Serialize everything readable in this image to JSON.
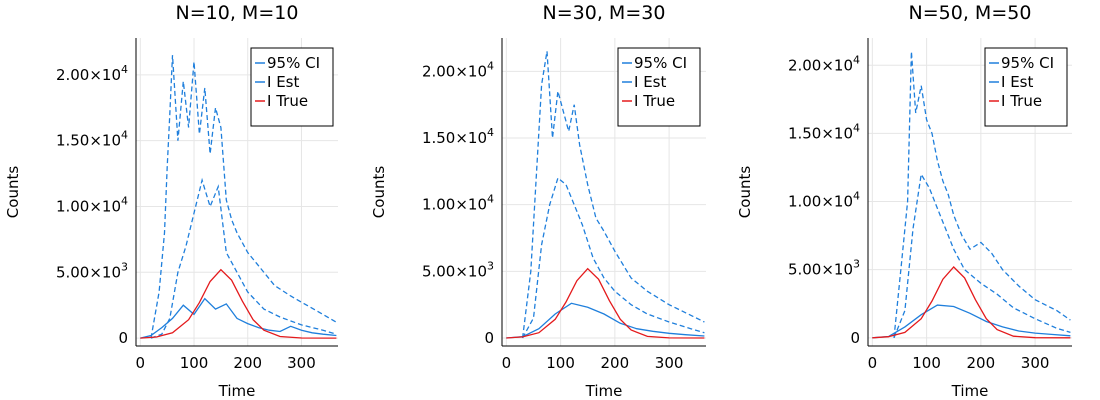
{
  "chart_data": [
    {
      "type": "line",
      "title": "N=10, M=10",
      "xlabel": "Time",
      "ylabel": "Counts",
      "xlim": [
        -8,
        368
      ],
      "ylim": [
        -600,
        22800
      ],
      "xticks": [
        0,
        100,
        200,
        300
      ],
      "xtick_labels": [
        "0",
        "100",
        "200",
        "300"
      ],
      "yticks": [
        0,
        5000,
        10000,
        15000,
        20000
      ],
      "ytick_labels": [
        "0",
        "5.00×10",
        "1.00×10",
        "1.50×10",
        "2.00×10"
      ],
      "ytick_exponents": [
        "",
        "3",
        "4",
        "4",
        "4"
      ],
      "legend_position": "top-right",
      "grid": true,
      "series": [
        {
          "name": "95% CI",
          "style": "dashed",
          "color": "#1f7fdc",
          "x": [
            20,
            35,
            45,
            50,
            55,
            60,
            70,
            80,
            90,
            100,
            110,
            120,
            130,
            140,
            150,
            160,
            170,
            180,
            200,
            220,
            250,
            280,
            310,
            340,
            365
          ],
          "y": [
            0,
            3500,
            8000,
            13000,
            17000,
            21500,
            15000,
            19500,
            16000,
            21000,
            15500,
            19000,
            14000,
            17500,
            16000,
            10500,
            9000,
            8000,
            6500,
            5500,
            4000,
            3200,
            2500,
            1800,
            1200
          ]
        },
        {
          "name": "95% CI lower",
          "style": "dashed",
          "color": "#1f7fdc",
          "x": [
            20,
            40,
            55,
            70,
            85,
            100,
            115,
            130,
            145,
            160,
            180,
            200,
            230,
            260,
            300,
            340,
            365
          ],
          "y": [
            0,
            300,
            1500,
            5000,
            7000,
            9500,
            12000,
            10000,
            11500,
            6500,
            5000,
            3500,
            2200,
            1600,
            1000,
            600,
            300
          ]
        },
        {
          "name": "I Est",
          "style": "solid",
          "color": "#1f7fdc",
          "x": [
            0,
            20,
            40,
            60,
            80,
            100,
            120,
            140,
            160,
            180,
            200,
            220,
            240,
            260,
            280,
            300,
            320,
            340,
            365
          ],
          "y": [
            0,
            200,
            800,
            1500,
            2500,
            1800,
            3000,
            2200,
            2600,
            1500,
            1100,
            800,
            600,
            500,
            900,
            600,
            400,
            300,
            200
          ]
        },
        {
          "name": "I True",
          "style": "solid",
          "color": "#e41a1c",
          "x": [
            0,
            30,
            60,
            90,
            110,
            130,
            150,
            170,
            190,
            210,
            230,
            260,
            300,
            365
          ],
          "y": [
            0,
            80,
            400,
            1400,
            2700,
            4300,
            5200,
            4400,
            2800,
            1400,
            600,
            120,
            10,
            0
          ]
        }
      ]
    },
    {
      "type": "line",
      "title": "N=30, M=30",
      "xlabel": "Time",
      "ylabel": "Counts",
      "xlim": [
        -8,
        368
      ],
      "ylim": [
        -600,
        22500
      ],
      "xticks": [
        0,
        100,
        200,
        300
      ],
      "xtick_labels": [
        "0",
        "100",
        "200",
        "300"
      ],
      "yticks": [
        0,
        5000,
        10000,
        15000,
        20000
      ],
      "ytick_labels": [
        "0",
        "5.00×10",
        "1.00×10",
        "1.50×10",
        "2.00×10"
      ],
      "ytick_exponents": [
        "",
        "3",
        "4",
        "4",
        "4"
      ],
      "legend_position": "top-right",
      "grid": true,
      "series": [
        {
          "name": "95% CI",
          "style": "dashed",
          "color": "#1f7fdc",
          "x": [
            30,
            45,
            55,
            65,
            75,
            85,
            95,
            105,
            115,
            125,
            135,
            150,
            165,
            180,
            200,
            230,
            260,
            300,
            340,
            365
          ],
          "y": [
            0,
            5000,
            12000,
            19000,
            21500,
            15000,
            18500,
            17000,
            15500,
            17500,
            14500,
            11500,
            9000,
            8000,
            6500,
            4500,
            3500,
            2500,
            1700,
            1200
          ]
        },
        {
          "name": "95% CI lower",
          "style": "dashed",
          "color": "#1f7fdc",
          "x": [
            30,
            50,
            65,
            80,
            95,
            110,
            125,
            140,
            160,
            180,
            200,
            230,
            260,
            300,
            340,
            365
          ],
          "y": [
            0,
            1500,
            7000,
            10000,
            12000,
            11500,
            10000,
            8500,
            6000,
            4500,
            3500,
            2500,
            1800,
            1200,
            700,
            400
          ]
        },
        {
          "name": "I Est",
          "style": "solid",
          "color": "#1f7fdc",
          "x": [
            0,
            30,
            60,
            90,
            120,
            150,
            180,
            210,
            240,
            270,
            300,
            330,
            365
          ],
          "y": [
            0,
            100,
            700,
            1800,
            2600,
            2300,
            1800,
            1100,
            700,
            500,
            350,
            250,
            150
          ]
        },
        {
          "name": "I True",
          "style": "solid",
          "color": "#e41a1c",
          "x": [
            0,
            30,
            60,
            90,
            110,
            130,
            150,
            170,
            190,
            210,
            230,
            260,
            300,
            365
          ],
          "y": [
            0,
            80,
            400,
            1400,
            2700,
            4300,
            5200,
            4400,
            2800,
            1400,
            600,
            120,
            10,
            0
          ]
        }
      ]
    },
    {
      "type": "line",
      "title": "N=50, M=50",
      "xlabel": "Time",
      "ylabel": "Counts",
      "xlim": [
        -8,
        368
      ],
      "ylim": [
        -600,
        22000
      ],
      "xticks": [
        0,
        100,
        200,
        300
      ],
      "xtick_labels": [
        "0",
        "100",
        "200",
        "300"
      ],
      "yticks": [
        0,
        5000,
        10000,
        15000,
        20000
      ],
      "ytick_labels": [
        "0",
        "5.00×10",
        "1.00×10",
        "1.50×10",
        "2.00×10"
      ],
      "ytick_exponents": [
        "",
        "3",
        "4",
        "4",
        "4"
      ],
      "legend_position": "top-right",
      "grid": true,
      "series": [
        {
          "name": "95% CI",
          "style": "dashed",
          "color": "#1f7fdc",
          "x": [
            40,
            55,
            65,
            72,
            80,
            90,
            100,
            110,
            120,
            130,
            140,
            150,
            165,
            180,
            200,
            220,
            240,
            270,
            300,
            340,
            365
          ],
          "y": [
            0,
            6000,
            10000,
            21000,
            16500,
            18500,
            16000,
            15000,
            13000,
            11500,
            10500,
            9000,
            7500,
            6500,
            7000,
            6200,
            5000,
            3800,
            2800,
            2000,
            1300
          ]
        },
        {
          "name": "95% CI lower",
          "style": "dashed",
          "color": "#1f7fdc",
          "x": [
            40,
            60,
            75,
            90,
            105,
            120,
            135,
            150,
            170,
            200,
            230,
            260,
            300,
            340,
            365
          ],
          "y": [
            0,
            2000,
            8000,
            12000,
            11000,
            9500,
            8000,
            6500,
            5000,
            4000,
            3200,
            2200,
            1400,
            700,
            400
          ]
        },
        {
          "name": "I Est",
          "style": "solid",
          "color": "#1f7fdc",
          "x": [
            0,
            30,
            60,
            90,
            120,
            150,
            180,
            210,
            240,
            270,
            300,
            330,
            365
          ],
          "y": [
            0,
            100,
            800,
            1700,
            2400,
            2300,
            1800,
            1200,
            800,
            500,
            350,
            250,
            150
          ]
        },
        {
          "name": "I True",
          "style": "solid",
          "color": "#e41a1c",
          "x": [
            0,
            30,
            60,
            90,
            110,
            130,
            150,
            170,
            190,
            210,
            230,
            260,
            300,
            365
          ],
          "y": [
            0,
            80,
            400,
            1400,
            2700,
            4300,
            5200,
            4400,
            2800,
            1400,
            600,
            120,
            10,
            0
          ]
        }
      ]
    }
  ],
  "legend": [
    {
      "label": "95% CI",
      "color": "#1f7fdc"
    },
    {
      "label": "I Est",
      "color": "#1f7fdc"
    },
    {
      "label": "I True",
      "color": "#e41a1c"
    }
  ]
}
